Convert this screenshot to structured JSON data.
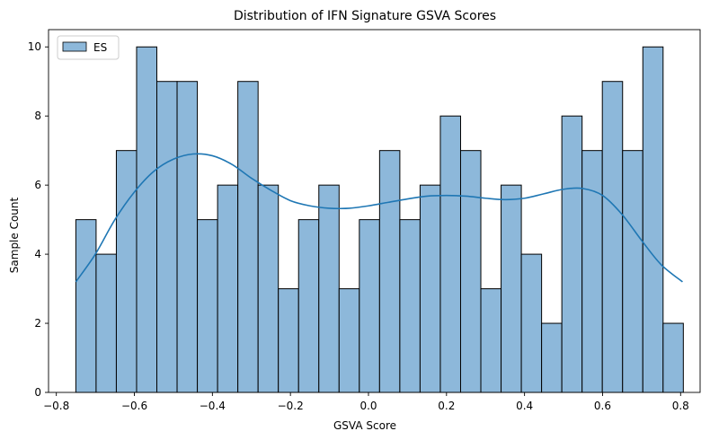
{
  "chart_data": {
    "type": "bar",
    "title": "Distribution of IFN Signature GSVA Scores",
    "xlabel": "GSVA Score",
    "ylabel": "Sample Count",
    "xlim": [
      -0.82,
      0.85
    ],
    "ylim": [
      0,
      10.5
    ],
    "xticks": [
      -0.8,
      -0.6,
      -0.4,
      -0.2,
      0.0,
      0.2,
      0.4,
      0.6,
      0.8
    ],
    "xtick_labels": [
      "−0.8",
      "−0.6",
      "−0.4",
      "−0.2",
      "0.0",
      "0.2",
      "0.4",
      "0.6",
      "0.8"
    ],
    "yticks": [
      0,
      2,
      4,
      6,
      8,
      10
    ],
    "ytick_labels": [
      "0",
      "2",
      "4",
      "6",
      "8",
      "10"
    ],
    "grid": false,
    "legend": {
      "position": "top-left",
      "entries": [
        "ES"
      ]
    },
    "bin_start": -0.75,
    "bin_width": 0.0519,
    "series": [
      {
        "name": "ES",
        "type": "histogram",
        "values": [
          5,
          4,
          7,
          10,
          9,
          9,
          5,
          6,
          9,
          6,
          3,
          5,
          6,
          3,
          5,
          7,
          5,
          6,
          8,
          7,
          3,
          6,
          4,
          2,
          8,
          7,
          9,
          7,
          10,
          2
        ]
      }
    ],
    "kde": {
      "x": [
        -0.75,
        -0.7,
        -0.65,
        -0.6,
        -0.55,
        -0.5,
        -0.45,
        -0.4,
        -0.35,
        -0.3,
        -0.25,
        -0.2,
        -0.15,
        -0.1,
        -0.05,
        0.0,
        0.05,
        0.1,
        0.15,
        0.2,
        0.25,
        0.3,
        0.35,
        0.4,
        0.45,
        0.5,
        0.55,
        0.6,
        0.65,
        0.7,
        0.75,
        0.805
      ],
      "y": [
        3.2,
        4.0,
        5.0,
        5.8,
        6.4,
        6.75,
        6.9,
        6.85,
        6.6,
        6.2,
        5.85,
        5.55,
        5.4,
        5.33,
        5.33,
        5.4,
        5.5,
        5.6,
        5.68,
        5.7,
        5.68,
        5.62,
        5.58,
        5.62,
        5.75,
        5.88,
        5.9,
        5.7,
        5.15,
        4.4,
        3.7,
        3.2
      ]
    },
    "colors": {
      "bar_fill": "#8db8da",
      "bar_edge": "#000000",
      "kde_line": "#1f77b4"
    }
  }
}
